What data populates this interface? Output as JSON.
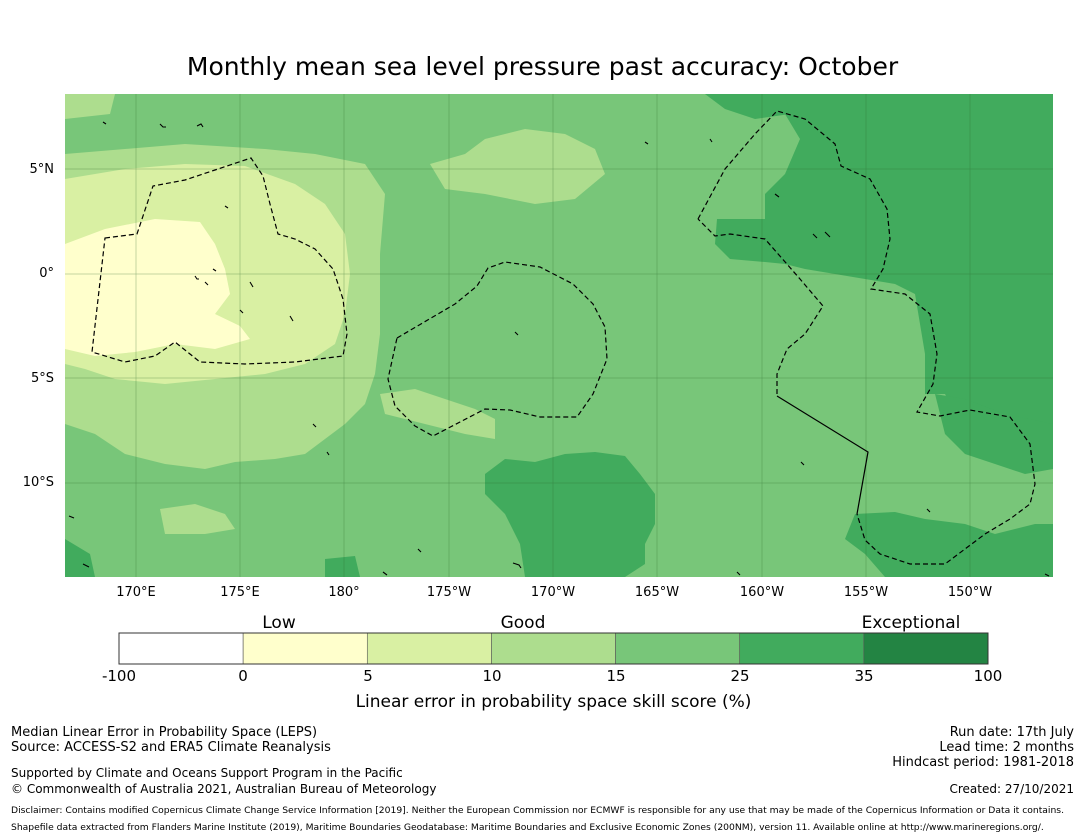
{
  "title": "Monthly mean sea level pressure past accuracy: October",
  "map": {
    "lat_labels": [
      "5°N",
      "0°",
      "5°S",
      "10°S"
    ],
    "lon_labels": [
      "170°E",
      "175°E",
      "180°",
      "175°W",
      "170°W",
      "165°W",
      "160°W",
      "155°W",
      "150°W"
    ]
  },
  "colorbar": {
    "categories": [
      "Low",
      "Good",
      "Exceptional"
    ],
    "ticks": [
      "-100",
      "0",
      "5",
      "10",
      "15",
      "25",
      "35",
      "100"
    ],
    "colors": [
      "#ffffff",
      "#ffffcc",
      "#d9f0a3",
      "#addd8e",
      "#78c679",
      "#41ab5d",
      "#238443"
    ],
    "title": "Linear error in probability space skill score (%)"
  },
  "footer": {
    "method": "Median Linear Error in Probability Space (LEPS)",
    "source": "Source: ACCESS-S2 and ERA5 Climate Reanalysis",
    "support": "Supported by Climate and Oceans Support Program in the Pacific",
    "copyright": "© Commonwealth of Australia 2021, Australian Bureau of Meteorology",
    "run_date": "Run date: 17th July",
    "lead_time": "Lead time: 2 months",
    "hindcast": "Hindcast period: 1981-2018",
    "created": "Created: 27/10/2021",
    "disclaimer": "Disclaimer: Contains modified Copernicus Climate Change Service Information [2019]. Neither the European Commission nor ECMWF is responsible for any use that may be made of the Copernicus Information or Data it contains.",
    "shapefile": "Shapefile data extracted from Flanders Marine Institute (2019), Maritime Boundaries Geodatabase: Maritime Boundaries and Exclusive Economic Zones (200NM), version 11. Available online at http://www.marineregions.org/."
  }
}
